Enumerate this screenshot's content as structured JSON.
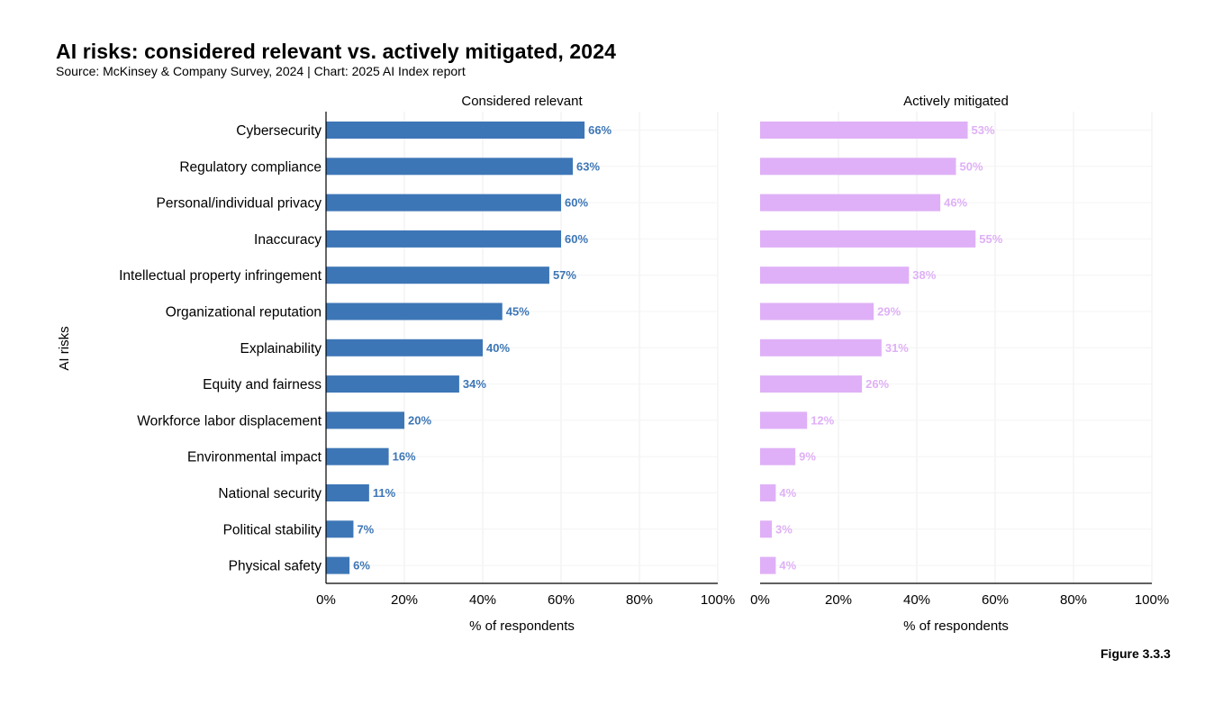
{
  "title": "AI risks: considered relevant vs. actively mitigated, 2024",
  "subtitle": "Source: McKinsey & Company Survey, 2024 | Chart: 2025 AI Index report",
  "figure_label": "Figure 3.3.3",
  "colors": {
    "relevant": "#3d76b6",
    "mitigated": "#dfb0f7",
    "grid": "#eeeeee",
    "axis": "#000000"
  },
  "chart_data": {
    "type": "bar",
    "orientation": "horizontal",
    "ylabel": "AI risks",
    "xlabel": "% of respondents",
    "xlim": [
      0,
      100
    ],
    "xticks": [
      0,
      20,
      40,
      60,
      80,
      100
    ],
    "xtick_labels": [
      "0%",
      "20%",
      "40%",
      "60%",
      "80%",
      "100%"
    ],
    "grid": true,
    "categories": [
      "Cybersecurity",
      "Regulatory compliance",
      "Personal/individual privacy",
      "Inaccuracy",
      "Intellectual property infringement",
      "Organizational reputation",
      "Explainability",
      "Equity and fairness",
      "Workforce labor displacement",
      "Environmental impact",
      "National security",
      "Political stability",
      "Physical safety"
    ],
    "series": [
      {
        "name": "Considered relevant",
        "values": [
          66,
          63,
          60,
          60,
          57,
          45,
          40,
          34,
          20,
          16,
          11,
          7,
          6
        ],
        "labels": [
          "66%",
          "63%",
          "60%",
          "60%",
          "57%",
          "45%",
          "40%",
          "34%",
          "20%",
          "16%",
          "11%",
          "7%",
          "6%"
        ]
      },
      {
        "name": "Actively mitigated",
        "values": [
          53,
          50,
          46,
          55,
          38,
          29,
          31,
          26,
          12,
          9,
          4,
          3,
          4
        ],
        "labels": [
          "53%",
          "50%",
          "46%",
          "55%",
          "38%",
          "29%",
          "31%",
          "26%",
          "12%",
          "9%",
          "4%",
          "3%",
          "4%"
        ]
      }
    ]
  }
}
